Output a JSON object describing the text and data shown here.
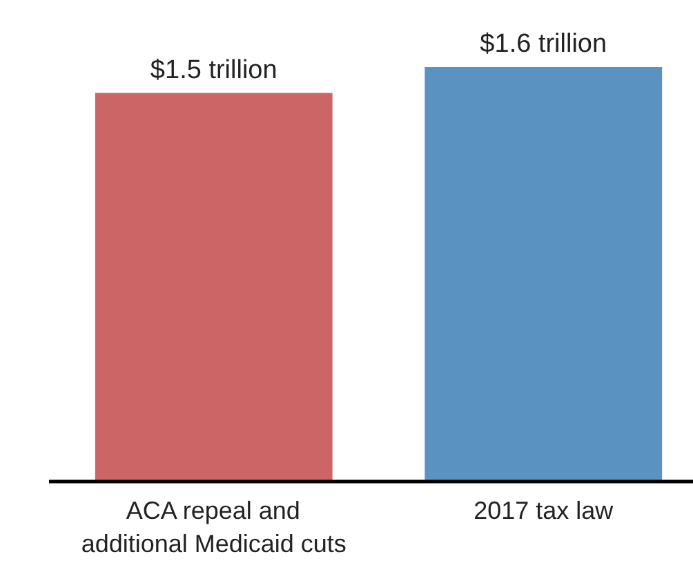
{
  "chart_data": {
    "type": "bar",
    "categories": [
      "ACA repeal and additional Medicaid cuts",
      "2017 tax law"
    ],
    "values": [
      1.5,
      1.6
    ],
    "colors": [
      "#cc6666",
      "#5a93c2"
    ],
    "value_labels": [
      "$1.5 trillion",
      "$1.6 trillion"
    ],
    "grid": false
  }
}
